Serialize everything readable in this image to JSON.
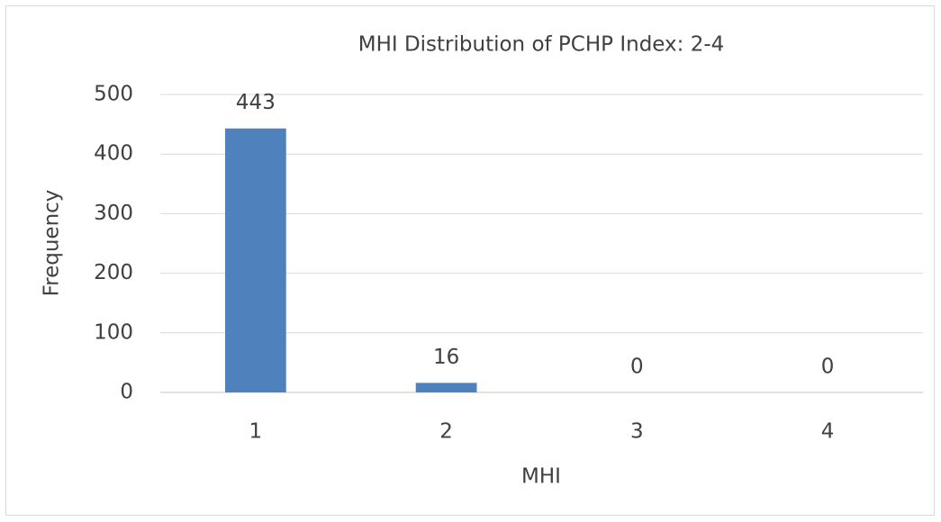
{
  "chart_data": {
    "type": "bar",
    "title": "MHI Distribution of PCHP Index: 2-4",
    "x_label": "MHI",
    "y_label": "Frequency",
    "categories": [
      "1",
      "2",
      "3",
      "4"
    ],
    "values": [
      443,
      16,
      0,
      0
    ],
    "color": "#4f81bd",
    "ylim": [
      0,
      500
    ],
    "yticks": [
      0,
      100,
      200,
      300,
      400,
      500
    ],
    "grid": true
  }
}
